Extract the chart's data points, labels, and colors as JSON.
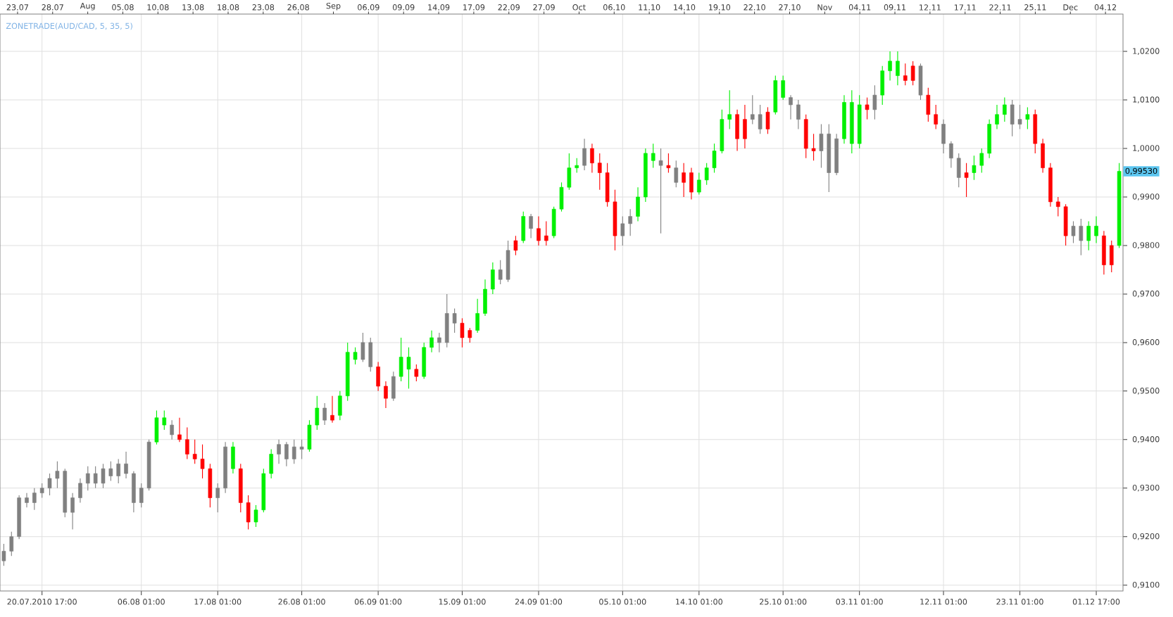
{
  "chart_data": {
    "type": "candlestick",
    "title": "ZONETRADE(AUD/CAD, 5, 35, 5)",
    "categories": [
      null,
      null,
      null,
      null,
      null,
      "20.07.2010 17:00",
      null,
      null,
      null,
      null,
      null,
      null,
      null,
      null,
      null,
      null,
      null,
      null,
      "06.08 01:00",
      null,
      null,
      null,
      null,
      null,
      null,
      null,
      null,
      null,
      "17.08 01:00",
      null,
      null,
      null,
      null,
      null,
      null,
      null,
      null,
      null,
      null,
      "26.08 01:00",
      null,
      null,
      null,
      null,
      null,
      null,
      null,
      null,
      null,
      "06.09 01:00",
      null,
      null,
      null,
      null,
      null,
      null,
      null,
      null,
      null,
      null,
      "15.09 01:00",
      null,
      null,
      null,
      null,
      null,
      null,
      null,
      null,
      null,
      "24.09 01:00",
      null,
      null,
      null,
      null,
      null,
      null,
      null,
      null,
      null,
      null,
      "05.10 01:00",
      null,
      null,
      null,
      null,
      null,
      null,
      null,
      null,
      null,
      "14.10 01:00",
      null,
      null,
      null,
      null,
      null,
      null,
      null,
      null,
      null,
      null,
      "25.10 01:00",
      null,
      null,
      null,
      null,
      null,
      null,
      null,
      null,
      null,
      "03.11 01:00",
      null,
      null,
      null,
      null,
      null,
      null,
      null,
      null,
      null,
      null,
      "12.11 01:00",
      null,
      null,
      null,
      null,
      null,
      null,
      null,
      null,
      null,
      "23.11 01:00",
      null,
      null,
      null,
      null,
      null,
      null,
      null,
      null,
      null,
      "01.12 17:00",
      null,
      null,
      null
    ],
    "ohlc": [
      [
        0.915,
        0.9185,
        0.914,
        0.917
      ],
      [
        0.917,
        0.921,
        0.916,
        0.92
      ],
      [
        0.92,
        0.9285,
        0.9195,
        0.928
      ],
      [
        0.928,
        0.929,
        0.926,
        0.927
      ],
      [
        0.927,
        0.93,
        0.9255,
        0.929
      ],
      [
        0.929,
        0.931,
        0.928,
        0.93
      ],
      [
        0.93,
        0.933,
        0.9285,
        0.932
      ],
      [
        0.932,
        0.9355,
        0.93,
        0.9335
      ],
      [
        0.9335,
        0.934,
        0.924,
        0.925
      ],
      [
        0.925,
        0.929,
        0.9215,
        0.928
      ],
      [
        0.928,
        0.932,
        0.927,
        0.931
      ],
      [
        0.931,
        0.9345,
        0.9295,
        0.933
      ],
      [
        0.933,
        0.9345,
        0.93,
        0.931
      ],
      [
        0.931,
        0.935,
        0.93,
        0.934
      ],
      [
        0.934,
        0.9355,
        0.9315,
        0.9325
      ],
      [
        0.9325,
        0.936,
        0.931,
        0.935
      ],
      [
        0.935,
        0.9375,
        0.932,
        0.933
      ],
      [
        0.933,
        0.9335,
        0.925,
        0.927
      ],
      [
        0.927,
        0.931,
        0.926,
        0.93
      ],
      [
        0.93,
        0.94,
        0.9295,
        0.9395
      ],
      [
        0.9395,
        0.946,
        0.939,
        0.9445
      ],
      [
        0.943,
        0.946,
        0.942,
        0.9445
      ],
      [
        0.943,
        0.944,
        0.94,
        0.941
      ],
      [
        0.941,
        0.9445,
        0.9395,
        0.94
      ],
      [
        0.94,
        0.9425,
        0.936,
        0.937
      ],
      [
        0.937,
        0.94,
        0.935,
        0.936
      ],
      [
        0.936,
        0.939,
        0.932,
        0.934
      ],
      [
        0.934,
        0.935,
        0.926,
        0.928
      ],
      [
        0.928,
        0.931,
        0.925,
        0.93
      ],
      [
        0.93,
        0.9395,
        0.929,
        0.9385
      ],
      [
        0.934,
        0.9395,
        0.933,
        0.9385
      ],
      [
        0.934,
        0.935,
        0.925,
        0.927
      ],
      [
        0.927,
        0.9285,
        0.9215,
        0.923
      ],
      [
        0.923,
        0.9265,
        0.922,
        0.9255
      ],
      [
        0.9255,
        0.934,
        0.925,
        0.933
      ],
      [
        0.933,
        0.938,
        0.932,
        0.937
      ],
      [
        0.937,
        0.94,
        0.935,
        0.939
      ],
      [
        0.939,
        0.9395,
        0.9345,
        0.936
      ],
      [
        0.936,
        0.94,
        0.935,
        0.9385
      ],
      [
        0.9385,
        0.94,
        0.936,
        0.938
      ],
      [
        0.938,
        0.944,
        0.9375,
        0.943
      ],
      [
        0.943,
        0.949,
        0.942,
        0.9465
      ],
      [
        0.9465,
        0.9475,
        0.943,
        0.944
      ],
      [
        0.945,
        0.949,
        0.9435,
        0.944
      ],
      [
        0.945,
        0.95,
        0.944,
        0.949
      ],
      [
        0.949,
        0.96,
        0.948,
        0.958
      ],
      [
        0.9565,
        0.959,
        0.9555,
        0.958
      ],
      [
        0.9565,
        0.962,
        0.956,
        0.96
      ],
      [
        0.96,
        0.961,
        0.954,
        0.955
      ],
      [
        0.955,
        0.956,
        0.95,
        0.951
      ],
      [
        0.951,
        0.952,
        0.9465,
        0.9485
      ],
      [
        0.9485,
        0.954,
        0.948,
        0.953
      ],
      [
        0.953,
        0.961,
        0.952,
        0.957
      ],
      [
        0.9545,
        0.959,
        0.9505,
        0.957
      ],
      [
        0.9545,
        0.9555,
        0.952,
        0.953
      ],
      [
        0.953,
        0.96,
        0.9525,
        0.959
      ],
      [
        0.959,
        0.9625,
        0.958,
        0.961
      ],
      [
        0.961,
        0.962,
        0.958,
        0.96
      ],
      [
        0.96,
        0.97,
        0.959,
        0.966
      ],
      [
        0.966,
        0.967,
        0.962,
        0.964
      ],
      [
        0.964,
        0.965,
        0.959,
        0.961
      ],
      [
        0.9625,
        0.963,
        0.96,
        0.961
      ],
      [
        0.9625,
        0.969,
        0.962,
        0.966
      ],
      [
        0.966,
        0.973,
        0.9655,
        0.971
      ],
      [
        0.971,
        0.9765,
        0.97,
        0.975
      ],
      [
        0.975,
        0.977,
        0.972,
        0.973
      ],
      [
        0.973,
        0.981,
        0.9725,
        0.979
      ],
      [
        0.981,
        0.982,
        0.978,
        0.979
      ],
      [
        0.981,
        0.987,
        0.9805,
        0.986
      ],
      [
        0.986,
        0.9865,
        0.9815,
        0.9835
      ],
      [
        0.9835,
        0.986,
        0.98,
        0.981
      ],
      [
        0.982,
        0.985,
        0.98,
        0.981
      ],
      [
        0.982,
        0.988,
        0.9815,
        0.9875
      ],
      [
        0.9875,
        0.993,
        0.987,
        0.992
      ],
      [
        0.992,
        0.999,
        0.9915,
        0.996
      ],
      [
        0.996,
        0.998,
        0.995,
        0.9965
      ],
      [
        0.9965,
        1.002,
        0.9955,
        1.0
      ],
      [
        1.0,
        1.001,
        0.995,
        0.997
      ],
      [
        0.997,
        0.999,
        0.9915,
        0.995
      ],
      [
        0.995,
        0.997,
        0.988,
        0.989
      ],
      [
        0.989,
        0.9915,
        0.979,
        0.982
      ],
      [
        0.982,
        0.986,
        0.98,
        0.9845
      ],
      [
        0.9845,
        0.9875,
        0.982,
        0.986
      ],
      [
        0.986,
        0.992,
        0.985,
        0.99
      ],
      [
        0.99,
        1.0,
        0.989,
        0.999
      ],
      [
        0.9975,
        1.001,
        0.996,
        0.999
      ],
      [
        0.9975,
        1.0,
        0.9825,
        0.9965
      ],
      [
        0.9965,
        0.999,
        0.995,
        0.996
      ],
      [
        0.996,
        0.9975,
        0.992,
        0.993
      ],
      [
        0.995,
        0.997,
        0.99,
        0.993
      ],
      [
        0.995,
        0.996,
        0.9895,
        0.991
      ],
      [
        0.991,
        0.995,
        0.9905,
        0.9935
      ],
      [
        0.9935,
        0.997,
        0.9925,
        0.996
      ],
      [
        0.996,
        1.001,
        0.995,
        0.9995
      ],
      [
        0.9995,
        1.008,
        0.999,
        1.006
      ],
      [
        1.006,
        1.012,
        1.004,
        1.007
      ],
      [
        1.007,
        1.008,
        0.9995,
        1.002
      ],
      [
        1.006,
        1.009,
        1.0,
        1.002
      ],
      [
        1.006,
        1.011,
        1.005,
        1.007
      ],
      [
        1.007,
        1.009,
        1.003,
        1.004
      ],
      [
        1.0075,
        1.0085,
        1.003,
        1.004
      ],
      [
        1.0075,
        1.015,
        1.007,
        1.014
      ],
      [
        1.0105,
        1.015,
        1.01,
        1.014
      ],
      [
        1.0105,
        1.011,
        1.006,
        1.009
      ],
      [
        1.009,
        1.01,
        1.004,
        1.006
      ],
      [
        1.006,
        1.007,
        0.998,
        1.0
      ],
      [
        1.0,
        1.003,
        0.9975,
        0.9995
      ],
      [
        0.9995,
        1.005,
        0.996,
        1.003
      ],
      [
        1.003,
        1.005,
        0.991,
        0.995
      ],
      [
        0.995,
        1.003,
        0.9945,
        1.002
      ],
      [
        1.002,
        1.011,
        1.001,
        1.0095
      ],
      [
        1.001,
        1.012,
        0.999,
        1.0095
      ],
      [
        1.001,
        1.011,
        1.0,
        1.009
      ],
      [
        1.009,
        1.0105,
        1.006,
        1.008
      ],
      [
        1.008,
        1.013,
        1.006,
        1.011
      ],
      [
        1.011,
        1.017,
        1.009,
        1.016
      ],
      [
        1.016,
        1.02,
        1.014,
        1.018
      ],
      [
        1.015,
        1.02,
        1.013,
        1.018
      ],
      [
        1.015,
        1.0175,
        1.013,
        1.014
      ],
      [
        1.017,
        1.018,
        1.013,
        1.014
      ],
      [
        1.017,
        1.0175,
        1.01,
        1.011
      ],
      [
        1.011,
        1.0125,
        1.0055,
        1.007
      ],
      [
        1.007,
        1.009,
        1.004,
        1.005
      ],
      [
        1.005,
        1.006,
        0.999,
        1.001
      ],
      [
        1.001,
        1.0015,
        0.996,
        0.998
      ],
      [
        0.998,
        0.999,
        0.992,
        0.994
      ],
      [
        0.995,
        0.997,
        0.99,
        0.994
      ],
      [
        0.995,
        0.9985,
        0.9935,
        0.9965
      ],
      [
        0.9965,
        1.0,
        0.995,
        0.999
      ],
      [
        0.999,
        1.006,
        0.998,
        1.005
      ],
      [
        1.005,
        1.009,
        1.004,
        1.007
      ],
      [
        1.007,
        1.0105,
        1.0055,
        1.009
      ],
      [
        1.009,
        1.01,
        1.0025,
        1.005
      ],
      [
        1.005,
        1.009,
        1.004,
        1.006
      ],
      [
        1.006,
        1.0085,
        1.004,
        1.007
      ],
      [
        1.007,
        1.008,
        0.999,
        1.001
      ],
      [
        1.001,
        1.002,
        0.995,
        0.996
      ],
      [
        0.996,
        0.997,
        0.988,
        0.989
      ],
      [
        0.989,
        0.99,
        0.986,
        0.988
      ],
      [
        0.988,
        0.9885,
        0.98,
        0.982
      ],
      [
        0.982,
        0.985,
        0.9805,
        0.984
      ],
      [
        0.984,
        0.9855,
        0.978,
        0.981
      ],
      [
        0.981,
        0.985,
        0.979,
        0.984
      ],
      [
        0.982,
        0.986,
        0.9805,
        0.984
      ],
      [
        0.982,
        0.983,
        0.974,
        0.976
      ],
      [
        0.98,
        0.981,
        0.9745,
        0.976
      ],
      [
        0.98,
        0.997,
        0.9795,
        0.9953
      ]
    ],
    "colors": [
      "#808080",
      "#808080",
      "#808080",
      "#808080",
      "#808080",
      "#808080",
      "#808080",
      "#808080",
      "#808080",
      "#808080",
      "#808080",
      "#808080",
      "#808080",
      "#808080",
      "#808080",
      "#808080",
      "#808080",
      "#808080",
      "#808080",
      "#808080",
      "#00f000",
      "#00f000",
      "#808080",
      "#ff0000",
      "#ff0000",
      "#ff0000",
      "#ff0000",
      "#ff0000",
      "#808080",
      "#808080",
      "#00f000",
      "#ff0000",
      "#ff0000",
      "#00f000",
      "#00f000",
      "#00f000",
      "#808080",
      "#808080",
      "#808080",
      "#808080",
      "#00f000",
      "#00f000",
      "#808080",
      "#ff0000",
      "#00f000",
      "#00f000",
      "#00f000",
      "#808080",
      "#808080",
      "#ff0000",
      "#ff0000",
      "#808080",
      "#00f000",
      "#00f000",
      "#ff0000",
      "#00f000",
      "#00f000",
      "#808080",
      "#808080",
      "#808080",
      "#ff0000",
      "#ff0000",
      "#00f000",
      "#00f000",
      "#00f000",
      "#808080",
      "#808080",
      "#ff0000",
      "#00f000",
      "#808080",
      "#ff0000",
      "#ff0000",
      "#00f000",
      "#00f000",
      "#00f000",
      "#00f000",
      "#808080",
      "#ff0000",
      "#ff0000",
      "#ff0000",
      "#ff0000",
      "#808080",
      "#808080",
      "#00f000",
      "#00f000",
      "#00f000",
      "#808080",
      "#ff0000",
      "#808080",
      "#ff0000",
      "#ff0000",
      "#00f000",
      "#00f000",
      "#00f000",
      "#00f000",
      "#00f000",
      "#ff0000",
      "#ff0000",
      "#808080",
      "#808080",
      "#ff0000",
      "#00f000",
      "#00f000",
      "#808080",
      "#808080",
      "#ff0000",
      "#ff0000",
      "#808080",
      "#808080",
      "#808080",
      "#00f000",
      "#00f000",
      "#00f000",
      "#ff0000",
      "#808080",
      "#00f000",
      "#00f000",
      "#00f000",
      "#ff0000",
      "#ff0000",
      "#808080",
      "#ff0000",
      "#ff0000",
      "#808080",
      "#808080",
      "#808080",
      "#ff0000",
      "#00f000",
      "#00f000",
      "#00f000",
      "#00f000",
      "#00f000",
      "#808080",
      "#808080",
      "#00f000",
      "#ff0000",
      "#ff0000",
      "#ff0000",
      "#ff0000",
      "#ff0000",
      "#808080",
      "#808080",
      "#00f000",
      "#00f000",
      "#ff0000",
      "#ff0000",
      "#00f000"
    ],
    "ylim": [
      0.9088,
      1.0277
    ],
    "yticks": [
      {
        "value": 0.91,
        "label": "0,9100"
      },
      {
        "value": 0.92,
        "label": "0,9200"
      },
      {
        "value": 0.93,
        "label": "0,9300"
      },
      {
        "value": 0.94,
        "label": "0,9400"
      },
      {
        "value": 0.95,
        "label": "0,9500"
      },
      {
        "value": 0.96,
        "label": "0,9600"
      },
      {
        "value": 0.97,
        "label": "0,9700"
      },
      {
        "value": 0.98,
        "label": "0,9800"
      },
      {
        "value": 0.99,
        "label": "0,9900"
      },
      {
        "value": 1.0,
        "label": "1,0000"
      },
      {
        "value": 1.01,
        "label": "1,0100"
      },
      {
        "value": 1.02,
        "label": "1,0200"
      }
    ],
    "annotations": [
      "23.07",
      "28.07",
      "Aug",
      "05.08",
      "10.08",
      "13.08",
      "18.08",
      "23.08",
      "26.08",
      "Sep",
      "06.09",
      "09.09",
      "14.09",
      "17.09",
      "22.09",
      "27.09",
      "Oct",
      "06.10",
      "11.10",
      "14.10",
      "19.10",
      "22.10",
      "27.10",
      "Nov",
      "04.11",
      "09.11",
      "12.11",
      "17.11",
      "22.11",
      "25.11",
      "Dec",
      "04.12",
      "0,99530"
    ],
    "grid": true
  }
}
